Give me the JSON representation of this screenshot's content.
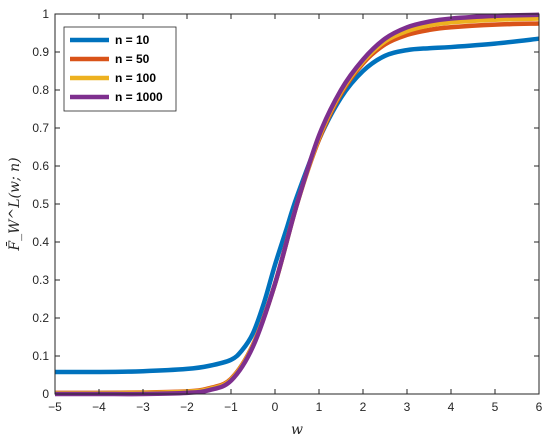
{
  "chart_data": {
    "type": "line",
    "title": "",
    "xlabel": "w",
    "ylabel": "F̄_W^L(w; n)",
    "xlim": [
      -5,
      6
    ],
    "ylim": [
      0,
      1
    ],
    "xticks": [
      -5,
      -4,
      -3,
      -2,
      -1,
      0,
      1,
      2,
      3,
      4,
      5,
      6
    ],
    "xtick_labels": [
      "−5",
      "−4",
      "−3",
      "−2",
      "−1",
      "0",
      "1",
      "2",
      "3",
      "4",
      "5",
      "6"
    ],
    "yticks": [
      0,
      0.1,
      0.2,
      0.3,
      0.4,
      0.5,
      0.6,
      0.7,
      0.8,
      0.9,
      1
    ],
    "ytick_labels": [
      "0",
      "0.1",
      "0.2",
      "0.3",
      "0.4",
      "0.5",
      "0.6",
      "0.7",
      "0.8",
      "0.9",
      "1"
    ],
    "grid": false,
    "legend_position": "top-left",
    "series": [
      {
        "name": "n = 10",
        "color": "#0072BD",
        "x": [
          -5,
          -4,
          -3,
          -2,
          -1.5,
          -1,
          -0.75,
          -0.5,
          -0.25,
          0,
          0.25,
          0.5,
          1,
          1.5,
          2,
          2.5,
          3,
          3.5,
          4,
          5,
          6
        ],
        "y": [
          0.058,
          0.058,
          0.06,
          0.066,
          0.074,
          0.09,
          0.115,
          0.16,
          0.24,
          0.34,
          0.43,
          0.52,
          0.67,
          0.78,
          0.85,
          0.89,
          0.905,
          0.91,
          0.913,
          0.922,
          0.935
        ]
      },
      {
        "name": "n = 50",
        "color": "#D95319",
        "x": [
          -5,
          -4,
          -3,
          -2,
          -1.5,
          -1,
          -0.5,
          0,
          0.5,
          1,
          1.5,
          2,
          2.5,
          3,
          3.5,
          4,
          5,
          6
        ],
        "y": [
          0.003,
          0.003,
          0.004,
          0.007,
          0.015,
          0.04,
          0.13,
          0.29,
          0.5,
          0.67,
          0.79,
          0.87,
          0.92,
          0.945,
          0.958,
          0.965,
          0.972,
          0.975
        ]
      },
      {
        "name": "n = 100",
        "color": "#EDB120",
        "x": [
          -5,
          -4,
          -3,
          -2,
          -1.5,
          -1,
          -0.5,
          0,
          0.5,
          1,
          1.5,
          2,
          2.5,
          3,
          3.5,
          4,
          5,
          6
        ],
        "y": [
          0.002,
          0.002,
          0.003,
          0.006,
          0.013,
          0.038,
          0.128,
          0.29,
          0.5,
          0.675,
          0.795,
          0.875,
          0.928,
          0.955,
          0.97,
          0.978,
          0.985,
          0.988
        ]
      },
      {
        "name": "n = 1000",
        "color": "#7E2F8E",
        "x": [
          -5,
          -4,
          -3,
          -2,
          -1.5,
          -1,
          -0.5,
          0,
          0.5,
          1,
          1.5,
          2,
          2.5,
          3,
          3.5,
          4,
          5,
          6
        ],
        "y": [
          0.0,
          0.0,
          0.0,
          0.003,
          0.01,
          0.035,
          0.125,
          0.29,
          0.5,
          0.68,
          0.8,
          0.88,
          0.935,
          0.965,
          0.98,
          0.988,
          0.995,
          0.998
        ]
      }
    ]
  }
}
